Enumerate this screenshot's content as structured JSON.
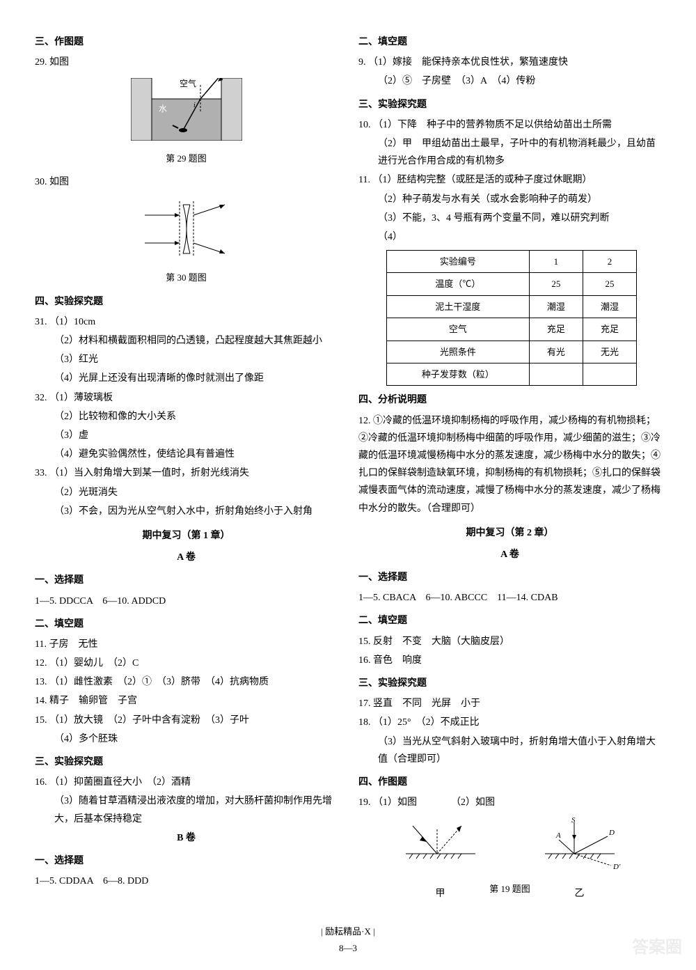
{
  "left": {
    "s3_title": "三、作图题",
    "q29_num": "29. 如图",
    "q29_air": "空气",
    "q29_water": "水",
    "q29_fig_label": "第 29 题图",
    "q30_num": "30. 如图",
    "q30_fig_label": "第 30 题图",
    "s4_title": "四、实验探究题",
    "q31_num": "31.",
    "q31_1": "（1）10cm",
    "q31_2": "（2）材料和横截面积相同的凸透镜，凸起程度越大其焦距越小",
    "q31_3": "（3）红光",
    "q31_4": "（4）光屏上还没有出现清晰的像时就测出了像距",
    "q32_num": "32.",
    "q32_1": "（1）薄玻璃板",
    "q32_2": "（2）比较物和像的大小关系",
    "q32_3": "（3）虚",
    "q32_4": "（4）避免实验偶然性，使结论具有普遍性",
    "q33_num": "33.",
    "q33_1": "（1）当入射角增大到某一值时，折射光线消失",
    "q33_2": "（2）光斑消失",
    "q33_3": "（3）不会，因为光从空气射入水中，折射角始终小于入射角",
    "midterm1_title": "期中复习（第 1 章）",
    "paper_a": "A 卷",
    "s1a_title": "一、选择题",
    "s1a_ans": "1—5. DDCCA　6—10. ADDCD",
    "s2a_title": "二、填空题",
    "q11": "11. 子房　无性",
    "q12": "12. （1）婴幼儿　（2）C",
    "q13": "13. （1）雌性激素　（2）①　（3）脐带　（4）抗病物质",
    "q14": "14. 精子　输卵管　子宫",
    "q15": "15. （1）放大镜　（2）子叶中含有淀粉　（3）子叶",
    "q15_4": "（4）多个胚珠",
    "s3a_title": "三、实验探究题",
    "q16_num": "16.",
    "q16_1": "（1）抑菌圈直径大小　（2）酒精",
    "q16_3": "（3）随着甘草酒精浸出液浓度的增加，对大肠杆菌抑制作用先增大，后基本保持稳定",
    "paper_b": "B 卷",
    "s1b_title": "一、选择题",
    "s1b_ans": "1—5. CDDAA　6—8. DDD"
  },
  "right": {
    "s2_title": "二、填空题",
    "q9_num": "9.",
    "q9_1": "（1）嫁接　能保持亲本优良性状，繁殖速度快",
    "q9_2": "（2）⑤　子房壁　（3）A　（4）传粉",
    "s3_title": "三、实验探究题",
    "q10_num": "10.",
    "q10_1": "（1）下降　种子中的营养物质不足以供给幼苗出土所需",
    "q10_2": "（2）甲　甲组幼苗出土最早，子叶中的有机物消耗最少，且幼苗进行光合作用合成的有机物多",
    "q11_num": "11.",
    "q11_1": "（1）胚结构完整（或胚是活的或种子度过休眠期）",
    "q11_2": "（2）种子萌发与水有关（或水会影响种子的萌发）",
    "q11_3": "（3）不能，3、4 号瓶有两个变量不同，难以研究判断",
    "q11_4": "（4）",
    "table": {
      "rows": [
        [
          "实验编号",
          "1",
          "2"
        ],
        [
          "温度（℃）",
          "25",
          "25"
        ],
        [
          "泥土干湿度",
          "潮湿",
          "潮湿"
        ],
        [
          "空气",
          "充足",
          "充足"
        ],
        [
          "光照条件",
          "有光",
          "无光"
        ],
        [
          "种子发芽数（粒）",
          "",
          ""
        ]
      ]
    },
    "s4_title": "四、分析说明题",
    "q12_num": "12.",
    "q12_text": "①冷藏的低温环境抑制杨梅的呼吸作用，减少杨梅的有机物损耗；②冷藏的低温环境抑制杨梅中细菌的呼吸作用，减少细菌的滋生；③冷藏的低温环境减慢杨梅中水分的蒸发速度，减少杨梅中水分的散失；④扎口的保鲜袋制造缺氧环境，抑制杨梅的有机物损耗；⑤扎口的保鲜袋减慢表面气体的流动速度，减慢了杨梅中水分的蒸发速度，减少了杨梅中水分的散失。（合理即可）",
    "midterm2_title": "期中复习（第 2 章）",
    "paper_a": "A 卷",
    "s1a_title": "一、选择题",
    "s1a_ans": "1—5. CBACA　6—10. ABCCC　11—14. CDAB",
    "s2a_title": "二、填空题",
    "q15": "15. 反射　不变　大脑（大脑皮层）",
    "q16": "16. 音色　响度",
    "s3a_title": "三、实验探究题",
    "q17": "17. 竖直　不同　光屏　小于",
    "q18_num": "18.",
    "q18_1": "（1）25°　（2）不成正比",
    "q18_3": "（3）当光从空气斜射入玻璃中时，折射角增大值小于入射角增大值（合理即可）",
    "s4a_title": "四、作图题",
    "q19_num": "19.",
    "q19_1": "（1）如图",
    "q19_2": "（2）如图",
    "q19_jia": "甲",
    "q19_yi": "乙",
    "q19_fig_label": "第 19 题图"
  },
  "footer": {
    "brand": "励耘精品·X",
    "page": "8—3"
  },
  "watermark": "答案圈"
}
